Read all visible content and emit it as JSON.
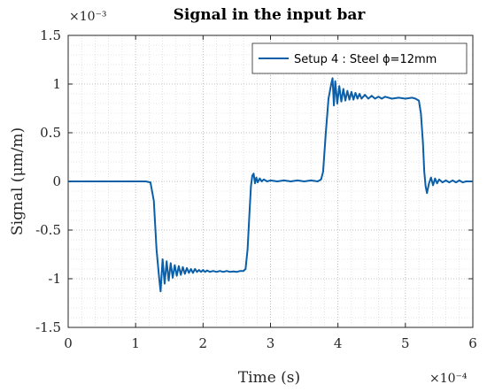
{
  "chart_data": {
    "type": "line",
    "title": "Signal in the input bar",
    "xlabel": "Time (s)",
    "ylabel": "Signal (μm/m)",
    "x_exponent_label": "×10⁻⁴",
    "y_exponent_label": "×10⁻³",
    "xlim": [
      0,
      6
    ],
    "ylim": [
      -1.5,
      1.5
    ],
    "x_ticks": [
      0,
      1,
      2,
      3,
      4,
      5,
      6
    ],
    "x_tick_labels": [
      "0",
      "1",
      "2",
      "3",
      "4",
      "5",
      "6"
    ],
    "y_ticks": [
      -1.5,
      -1,
      -0.5,
      0,
      0.5,
      1,
      1.5
    ],
    "y_tick_labels": [
      "-1.5",
      "-1",
      "-0.5",
      "0",
      "0.5",
      "1",
      "1.5"
    ],
    "grid": true,
    "minor_grid": true,
    "legend_position": "top-right",
    "series_color": "#0a5fa8",
    "series": [
      {
        "name": "Setup 4 : Steel ϕ=12mm",
        "points": [
          [
            0.0,
            0.0
          ],
          [
            1.15,
            0.0
          ],
          [
            1.22,
            -0.01
          ],
          [
            1.27,
            -0.2
          ],
          [
            1.31,
            -0.7
          ],
          [
            1.35,
            -1.0
          ],
          [
            1.37,
            -1.13
          ],
          [
            1.4,
            -0.8
          ],
          [
            1.43,
            -1.05
          ],
          [
            1.46,
            -0.82
          ],
          [
            1.49,
            -1.02
          ],
          [
            1.52,
            -0.84
          ],
          [
            1.55,
            -0.99
          ],
          [
            1.58,
            -0.86
          ],
          [
            1.61,
            -0.97
          ],
          [
            1.64,
            -0.87
          ],
          [
            1.67,
            -0.96
          ],
          [
            1.7,
            -0.88
          ],
          [
            1.73,
            -0.95
          ],
          [
            1.76,
            -0.89
          ],
          [
            1.79,
            -0.94
          ],
          [
            1.82,
            -0.9
          ],
          [
            1.85,
            -0.94
          ],
          [
            1.88,
            -0.9
          ],
          [
            1.91,
            -0.93
          ],
          [
            1.94,
            -0.91
          ],
          [
            1.97,
            -0.93
          ],
          [
            2.0,
            -0.91
          ],
          [
            2.03,
            -0.93
          ],
          [
            2.06,
            -0.915
          ],
          [
            2.1,
            -0.93
          ],
          [
            2.15,
            -0.92
          ],
          [
            2.2,
            -0.93
          ],
          [
            2.25,
            -0.92
          ],
          [
            2.3,
            -0.93
          ],
          [
            2.35,
            -0.92
          ],
          [
            2.4,
            -0.93
          ],
          [
            2.45,
            -0.925
          ],
          [
            2.5,
            -0.93
          ],
          [
            2.55,
            -0.92
          ],
          [
            2.6,
            -0.92
          ],
          [
            2.63,
            -0.9
          ],
          [
            2.66,
            -0.7
          ],
          [
            2.69,
            -0.3
          ],
          [
            2.71,
            -0.05
          ],
          [
            2.73,
            0.06
          ],
          [
            2.75,
            0.08
          ],
          [
            2.77,
            -0.02
          ],
          [
            2.79,
            0.04
          ],
          [
            2.81,
            -0.01
          ],
          [
            2.84,
            0.03
          ],
          [
            2.87,
            0.0
          ],
          [
            2.9,
            0.02
          ],
          [
            2.95,
            0.0
          ],
          [
            3.0,
            0.01
          ],
          [
            3.1,
            0.0
          ],
          [
            3.2,
            0.01
          ],
          [
            3.3,
            0.0
          ],
          [
            3.4,
            0.01
          ],
          [
            3.5,
            0.0
          ],
          [
            3.6,
            0.01
          ],
          [
            3.7,
            0.0
          ],
          [
            3.75,
            0.02
          ],
          [
            3.78,
            0.1
          ],
          [
            3.82,
            0.5
          ],
          [
            3.86,
            0.85
          ],
          [
            3.9,
            1.0
          ],
          [
            3.92,
            1.06
          ],
          [
            3.94,
            0.78
          ],
          [
            3.96,
            1.03
          ],
          [
            3.99,
            0.8
          ],
          [
            4.02,
            0.98
          ],
          [
            4.05,
            0.82
          ],
          [
            4.08,
            0.95
          ],
          [
            4.11,
            0.83
          ],
          [
            4.14,
            0.93
          ],
          [
            4.17,
            0.84
          ],
          [
            4.2,
            0.92
          ],
          [
            4.23,
            0.84
          ],
          [
            4.26,
            0.91
          ],
          [
            4.29,
            0.85
          ],
          [
            4.32,
            0.9
          ],
          [
            4.35,
            0.85
          ],
          [
            4.4,
            0.89
          ],
          [
            4.45,
            0.85
          ],
          [
            4.5,
            0.88
          ],
          [
            4.55,
            0.85
          ],
          [
            4.6,
            0.87
          ],
          [
            4.65,
            0.85
          ],
          [
            4.7,
            0.87
          ],
          [
            4.8,
            0.85
          ],
          [
            4.9,
            0.86
          ],
          [
            5.0,
            0.85
          ],
          [
            5.1,
            0.86
          ],
          [
            5.15,
            0.85
          ],
          [
            5.2,
            0.83
          ],
          [
            5.23,
            0.7
          ],
          [
            5.26,
            0.4
          ],
          [
            5.28,
            0.1
          ],
          [
            5.3,
            -0.05
          ],
          [
            5.32,
            -0.12
          ],
          [
            5.35,
            -0.02
          ],
          [
            5.38,
            0.04
          ],
          [
            5.41,
            -0.04
          ],
          [
            5.44,
            0.03
          ],
          [
            5.47,
            -0.02
          ],
          [
            5.5,
            0.02
          ],
          [
            5.55,
            -0.01
          ],
          [
            5.6,
            0.01
          ],
          [
            5.65,
            -0.01
          ],
          [
            5.7,
            0.01
          ],
          [
            5.75,
            -0.01
          ],
          [
            5.8,
            0.01
          ],
          [
            5.85,
            -0.01
          ],
          [
            5.9,
            0.0
          ],
          [
            6.0,
            0.0
          ]
        ]
      }
    ]
  }
}
